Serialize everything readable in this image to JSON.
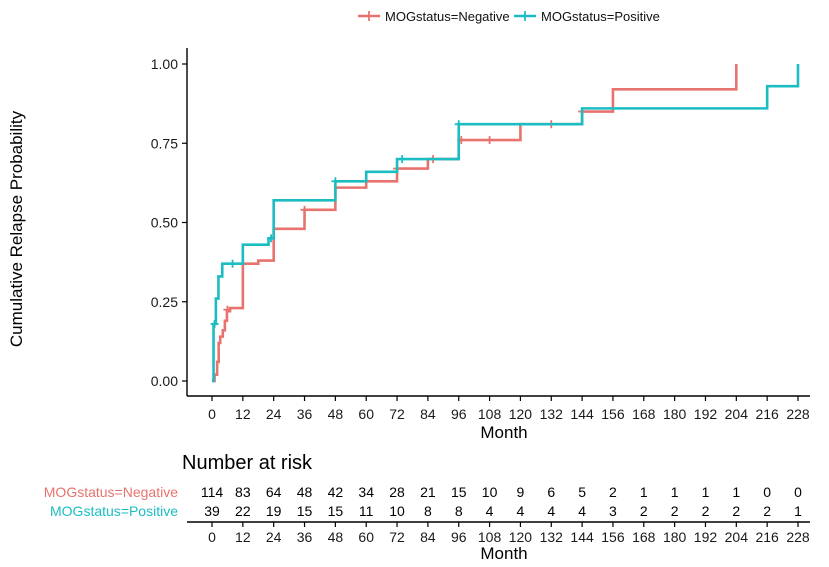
{
  "chart_data": {
    "type": "line",
    "subtype": "kaplan-meier-cumulative",
    "ylabel": "Cumulative Relapse Probability",
    "xlabel": "Month",
    "ylim": [
      0,
      1
    ],
    "xlim": [
      0,
      228
    ],
    "x_ticks": [
      0,
      12,
      24,
      36,
      48,
      60,
      72,
      84,
      96,
      108,
      120,
      132,
      144,
      156,
      168,
      180,
      192,
      204,
      216,
      228
    ],
    "y_ticks": [
      0.0,
      0.25,
      0.5,
      0.75,
      1.0
    ],
    "y_tick_labels": [
      "0.00",
      "0.25",
      "0.50",
      "0.75",
      "1.00"
    ],
    "legend_position": "top",
    "series": [
      {
        "name": "MOGstatus=Negative",
        "color": "#E8736E",
        "steps": [
          [
            0,
            0
          ],
          [
            1,
            0.02
          ],
          [
            2,
            0.06
          ],
          [
            2.6,
            0.12
          ],
          [
            3.2,
            0.14
          ],
          [
            4.2,
            0.16
          ],
          [
            5,
            0.19
          ],
          [
            5.8,
            0.22
          ],
          [
            7,
            0.23
          ],
          [
            12,
            0.37
          ],
          [
            18,
            0.38
          ],
          [
            24,
            0.48
          ],
          [
            36,
            0.54
          ],
          [
            48,
            0.61
          ],
          [
            60,
            0.63
          ],
          [
            72,
            0.67
          ],
          [
            84,
            0.7
          ],
          [
            96,
            0.76
          ],
          [
            120,
            0.81
          ],
          [
            144,
            0.85
          ],
          [
            156,
            0.92
          ],
          [
            204,
            1.0
          ]
        ],
        "end_x": 204,
        "censor": [
          [
            6,
            0.225
          ],
          [
            36,
            0.54
          ],
          [
            72,
            0.67
          ],
          [
            86,
            0.7
          ],
          [
            97,
            0.76
          ],
          [
            108,
            0.76
          ],
          [
            132,
            0.81
          ],
          [
            144,
            0.85
          ]
        ]
      },
      {
        "name": "MOGstatus=Positive",
        "color": "#1CBDC2",
        "steps": [
          [
            0,
            0
          ],
          [
            0.6,
            0.18
          ],
          [
            1.5,
            0.26
          ],
          [
            2.5,
            0.33
          ],
          [
            4,
            0.37
          ],
          [
            12,
            0.43
          ],
          [
            22,
            0.45
          ],
          [
            24,
            0.57
          ],
          [
            48,
            0.63
          ],
          [
            60,
            0.66
          ],
          [
            72,
            0.7
          ],
          [
            96,
            0.81
          ],
          [
            120,
            0.81
          ],
          [
            144,
            0.86
          ],
          [
            216,
            0.93
          ],
          [
            228,
            1.0
          ]
        ],
        "end_x": 228,
        "censor": [
          [
            1,
            0.18
          ],
          [
            8,
            0.37
          ],
          [
            23,
            0.45
          ],
          [
            48,
            0.63
          ],
          [
            74,
            0.7
          ],
          [
            96,
            0.81
          ]
        ]
      }
    ],
    "risk_table": {
      "title": "Number at risk",
      "times": [
        0,
        12,
        24,
        36,
        48,
        60,
        72,
        84,
        96,
        108,
        120,
        132,
        144,
        156,
        168,
        180,
        192,
        204,
        216,
        228
      ],
      "rows": [
        {
          "label": "MOGstatus=Negative",
          "color": "#E8736E",
          "counts": [
            "114",
            "83",
            "64",
            "48",
            "42",
            "34",
            "28",
            "21",
            "15",
            "10",
            "9",
            "6",
            "5",
            "2",
            "1",
            "1",
            "1",
            "1",
            "0",
            "0"
          ]
        },
        {
          "label": "MOGstatus=Positive",
          "color": "#1CBDC2",
          "counts": [
            "39",
            "22",
            "19",
            "15",
            "15",
            "11",
            "10",
            "8",
            "8",
            "4",
            "4",
            "4",
            "4",
            "3",
            "2",
            "2",
            "2",
            "2",
            "2",
            "1"
          ]
        }
      ],
      "xlabel": "Month"
    }
  }
}
